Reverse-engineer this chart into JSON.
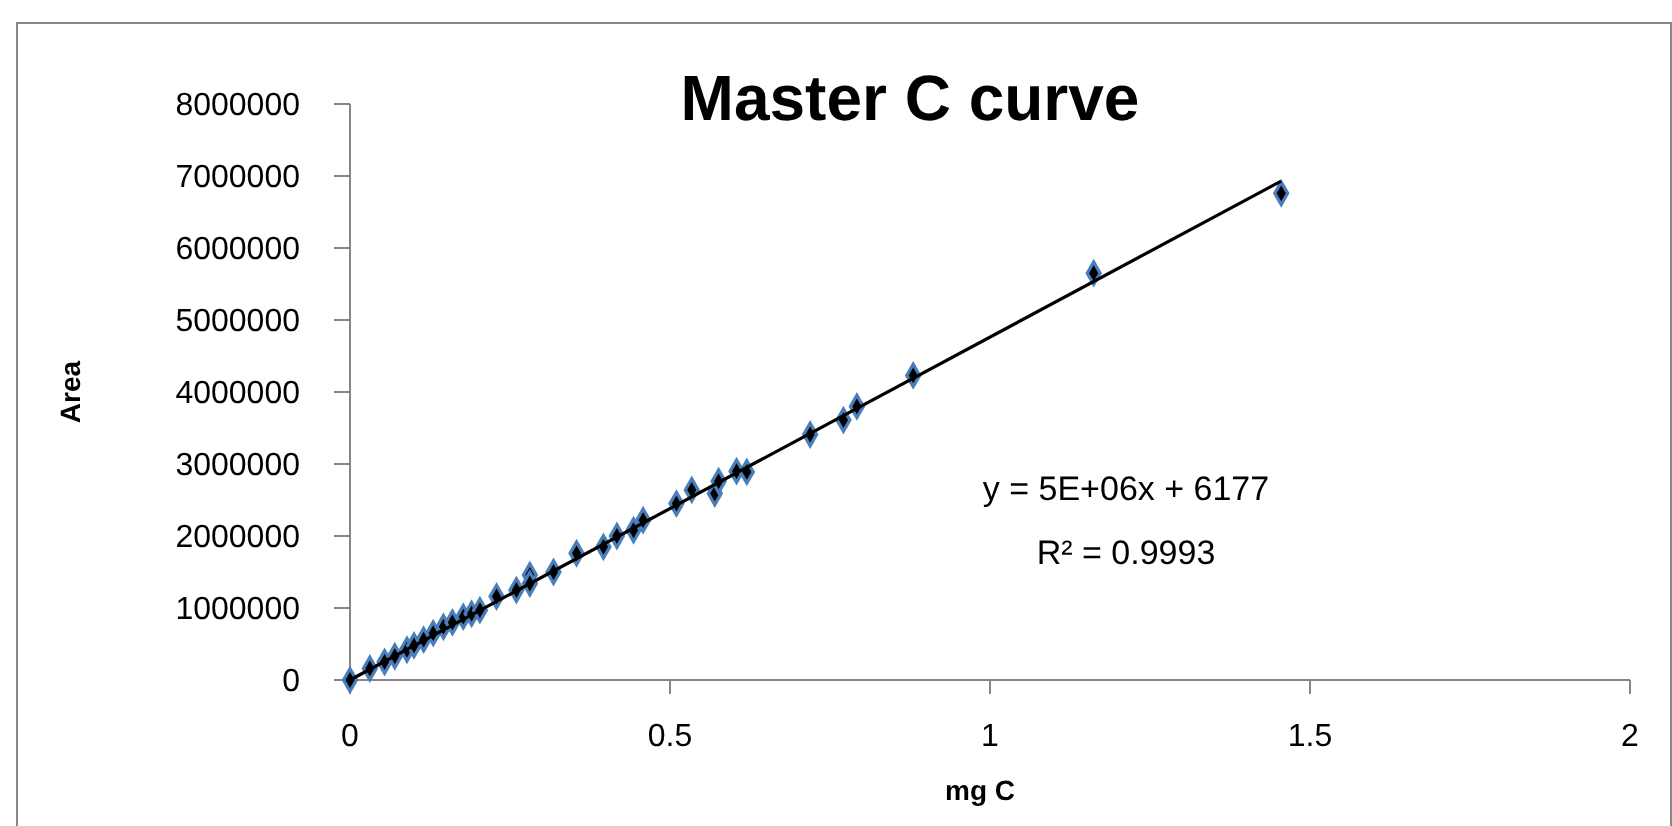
{
  "chart_data": {
    "type": "scatter",
    "title": "Master C curve",
    "xlabel": "mg C",
    "ylabel": "Area",
    "xlim": [
      0,
      2
    ],
    "xticks": [
      0,
      0.5,
      1,
      1.5,
      2
    ],
    "ylim": [
      0,
      8000000
    ],
    "yticks": [
      0,
      1000000,
      2000000,
      3000000,
      4000000,
      5000000,
      6000000,
      7000000,
      8000000
    ],
    "grid": false,
    "marker": "diamond",
    "annotations": [
      "y = 5E+06x + 6177",
      "R² = 0.9993"
    ],
    "series": [
      {
        "color": "#4a7ebb",
        "x": [
          0,
          0.031,
          0.054,
          0.07,
          0.089,
          0.1,
          0.115,
          0.13,
          0.146,
          0.16,
          0.177,
          0.19,
          0.203,
          0.229,
          0.26,
          0.281,
          0.281,
          0.318,
          0.354,
          0.396,
          0.417,
          0.443,
          0.458,
          0.51,
          0.534,
          0.57,
          0.576,
          0.604,
          0.62,
          0.719,
          0.771,
          0.792,
          0.88,
          1.162,
          1.455
        ],
        "values": [
          0,
          160000,
          250000,
          330000,
          420000,
          480000,
          560000,
          650000,
          740000,
          800000,
          880000,
          920000,
          970000,
          1160000,
          1250000,
          1460000,
          1340000,
          1500000,
          1760000,
          1850000,
          2000000,
          2080000,
          2220000,
          2450000,
          2640000,
          2590000,
          2760000,
          2900000,
          2890000,
          3410000,
          3610000,
          3800000,
          4230000,
          5650000,
          6760000
        ]
      },
      {
        "type": "line",
        "color": "#000000",
        "x": [
          0,
          1.455
        ],
        "values": [
          0,
          6930000
        ]
      }
    ]
  }
}
